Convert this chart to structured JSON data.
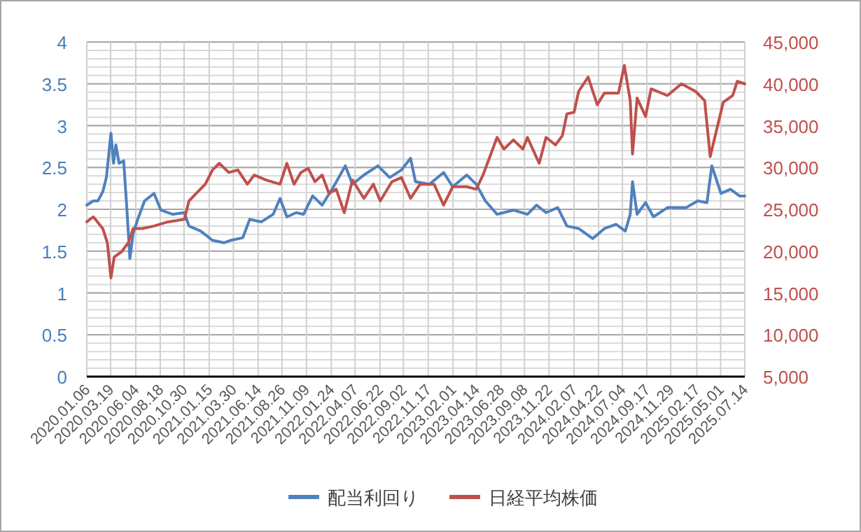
{
  "chart_data": {
    "type": "line",
    "grid": true,
    "legend": "bottom",
    "xlim": [
      "2020-01-06",
      "2025-07-14"
    ],
    "xticks": [
      {
        "value": "2020-01-06",
        "label": "2020.01.06"
      },
      {
        "value": "2020-03-19",
        "label": "2020.03.19"
      },
      {
        "value": "2020-06-04",
        "label": "2020.06.04"
      },
      {
        "value": "2020-08-18",
        "label": "2020.08.18"
      },
      {
        "value": "2020-10-30",
        "label": "2020.10.30"
      },
      {
        "value": "2021-01-15",
        "label": "2021.01.15"
      },
      {
        "value": "2021-03-30",
        "label": "2021.03.30"
      },
      {
        "value": "2021-06-14",
        "label": "2021.06.14"
      },
      {
        "value": "2021-08-26",
        "label": "2021.08.26"
      },
      {
        "value": "2021-11-09",
        "label": "2021.11.09"
      },
      {
        "value": "2022-01-24",
        "label": "2022.01.24"
      },
      {
        "value": "2022-04-07",
        "label": "2022.04.07"
      },
      {
        "value": "2022-06-22",
        "label": "2022.06.22"
      },
      {
        "value": "2022-09-02",
        "label": "2022.09.02"
      },
      {
        "value": "2022-11-17",
        "label": "2022.11.17"
      },
      {
        "value": "2023-02-01",
        "label": "2023.02.01"
      },
      {
        "value": "2023-04-14",
        "label": "2023.04.14"
      },
      {
        "value": "2023-06-28",
        "label": "2023.06.28"
      },
      {
        "value": "2023-09-08",
        "label": "2023.09.08"
      },
      {
        "value": "2023-11-22",
        "label": "2023.11.22"
      },
      {
        "value": "2024-02-07",
        "label": "2024.02.07"
      },
      {
        "value": "2024-04-22",
        "label": "2024.04.22"
      },
      {
        "value": "2024-07-04",
        "label": "2024.07.04"
      },
      {
        "value": "2024-09-17",
        "label": "2024.09.17"
      },
      {
        "value": "2024-11-29",
        "label": "2024.11.29"
      },
      {
        "value": "2025-02-17",
        "label": "2025.02.17"
      },
      {
        "value": "2025-05-01",
        "label": "2025.05.01"
      },
      {
        "value": "2025-07-14",
        "label": "2025.07.14"
      }
    ],
    "ylim": [
      0,
      4
    ],
    "yticks": [
      0,
      0.5,
      1,
      1.5,
      2,
      2.5,
      3,
      3.5,
      4
    ],
    "y2lim": [
      5000,
      45000
    ],
    "y2ticks": [
      {
        "value": 5000,
        "label": "5,000"
      },
      {
        "value": 10000,
        "label": "10,000"
      },
      {
        "value": 15000,
        "label": "15,000"
      },
      {
        "value": 20000,
        "label": "20,000"
      },
      {
        "value": 25000,
        "label": "25,000"
      },
      {
        "value": 30000,
        "label": "30,000"
      },
      {
        "value": 35000,
        "label": "35,000"
      },
      {
        "value": 40000,
        "label": "40,000"
      },
      {
        "value": 45000,
        "label": "45,000"
      }
    ],
    "series": [
      {
        "name": "配当利回り",
        "color": "#4f81bd",
        "x": [
          "2020-01-06",
          "2020-01-26",
          "2020-02-09",
          "2020-02-24",
          "2020-03-06",
          "2020-03-20",
          "2020-03-28",
          "2020-04-04",
          "2020-04-14",
          "2020-04-28",
          "2020-05-08",
          "2020-05-17",
          "2020-05-27",
          "2020-06-10",
          "2020-07-01",
          "2020-07-30",
          "2020-08-20",
          "2020-09-25",
          "2020-10-31",
          "2020-11-14",
          "2020-12-20",
          "2021-01-25",
          "2021-03-01",
          "2021-03-23",
          "2021-04-28",
          "2021-05-19",
          "2021-06-24",
          "2021-07-30",
          "2021-08-20",
          "2021-09-10",
          "2021-10-09",
          "2021-10-31",
          "2021-11-28",
          "2021-12-27",
          "2022-01-31",
          "2022-03-08",
          "2022-03-30",
          "2022-05-04",
          "2022-06-16",
          "2022-07-22",
          "2022-08-27",
          "2022-09-24",
          "2022-10-09",
          "2022-11-21",
          "2023-01-03",
          "2023-01-31",
          "2023-03-15",
          "2023-04-13",
          "2023-05-11",
          "2023-06-16",
          "2023-08-05",
          "2023-09-17",
          "2023-10-15",
          "2023-11-13",
          "2023-12-19",
          "2024-01-16",
          "2024-02-21",
          "2024-04-04",
          "2024-05-10",
          "2024-06-15",
          "2024-07-13",
          "2024-07-28",
          "2024-08-04",
          "2024-08-18",
          "2024-09-13",
          "2024-10-07",
          "2024-11-19",
          "2025-01-15",
          "2025-02-20",
          "2025-03-20",
          "2025-04-04",
          "2025-05-02",
          "2025-05-31",
          "2025-06-28",
          "2025-07-14"
        ],
        "values": [
          2.05,
          2.1,
          2.1,
          2.21,
          2.38,
          2.91,
          2.55,
          2.77,
          2.55,
          2.58,
          1.99,
          1.41,
          1.71,
          1.88,
          2.1,
          2.19,
          1.99,
          1.94,
          1.96,
          1.8,
          1.74,
          1.63,
          1.6,
          1.63,
          1.66,
          1.88,
          1.85,
          1.94,
          2.13,
          1.91,
          1.96,
          1.94,
          2.16,
          2.05,
          2.27,
          2.52,
          2.3,
          2.41,
          2.52,
          2.38,
          2.47,
          2.61,
          2.33,
          2.3,
          2.44,
          2.27,
          2.41,
          2.3,
          2.1,
          1.94,
          1.99,
          1.94,
          2.05,
          1.96,
          2.02,
          1.8,
          1.77,
          1.65,
          1.77,
          1.82,
          1.74,
          1.94,
          2.33,
          1.94,
          2.08,
          1.91,
          2.02,
          2.02,
          2.1,
          2.08,
          2.52,
          2.19,
          2.24,
          2.16,
          2.16
        ]
      },
      {
        "name": "日経平均株価",
        "color": "#c0504d",
        "axis": "y2",
        "x": [
          "2020-01-06",
          "2020-01-26",
          "2020-02-24",
          "2020-03-09",
          "2020-03-20",
          "2020-03-30",
          "2020-04-21",
          "2020-05-12",
          "2020-05-27",
          "2020-06-24",
          "2020-07-30",
          "2020-09-11",
          "2020-10-31",
          "2020-11-14",
          "2020-12-06",
          "2021-01-03",
          "2021-01-25",
          "2021-02-15",
          "2021-03-16",
          "2021-04-13",
          "2021-05-12",
          "2021-06-02",
          "2021-07-08",
          "2021-08-20",
          "2021-09-10",
          "2021-10-02",
          "2021-10-23",
          "2021-11-14",
          "2021-12-05",
          "2021-12-27",
          "2022-01-17",
          "2022-02-08",
          "2022-03-05",
          "2022-03-30",
          "2022-05-04",
          "2022-06-02",
          "2022-06-23",
          "2022-07-29",
          "2022-08-27",
          "2022-09-24",
          "2022-10-23",
          "2022-12-05",
          "2023-01-03",
          "2023-01-31",
          "2023-03-15",
          "2023-04-13",
          "2023-05-04",
          "2023-06-16",
          "2023-07-07",
          "2023-08-05",
          "2023-09-03",
          "2023-09-17",
          "2023-10-23",
          "2023-11-13",
          "2023-12-12",
          "2024-01-02",
          "2024-01-16",
          "2024-02-07",
          "2024-02-21",
          "2024-03-21",
          "2024-04-18",
          "2024-05-10",
          "2024-06-22",
          "2024-07-10",
          "2024-07-28",
          "2024-08-04",
          "2024-08-18",
          "2024-09-13",
          "2024-09-30",
          "2024-11-19",
          "2025-01-01",
          "2025-02-13",
          "2025-03-13",
          "2025-03-30",
          "2025-04-18",
          "2025-05-09",
          "2025-06-07",
          "2025-06-21",
          "2025-07-14"
        ],
        "values": [
          23500,
          24100,
          22700,
          21000,
          16800,
          19300,
          19900,
          21000,
          22700,
          22700,
          23000,
          23500,
          23800,
          26000,
          26900,
          28000,
          29700,
          30500,
          29400,
          29700,
          28000,
          29100,
          28500,
          28000,
          30500,
          28000,
          29400,
          29900,
          28300,
          29100,
          26900,
          27400,
          24600,
          28500,
          26300,
          28000,
          26000,
          28300,
          28800,
          26300,
          28000,
          28000,
          25500,
          27700,
          27700,
          27400,
          29100,
          33600,
          32200,
          33300,
          32200,
          33600,
          30500,
          33600,
          32700,
          33800,
          36400,
          36600,
          39100,
          40800,
          37500,
          38900,
          38900,
          42200,
          38000,
          31600,
          38300,
          36100,
          39400,
          38600,
          40000,
          39100,
          38000,
          31300,
          34400,
          37800,
          38600,
          40300,
          40000
        ]
      }
    ]
  }
}
